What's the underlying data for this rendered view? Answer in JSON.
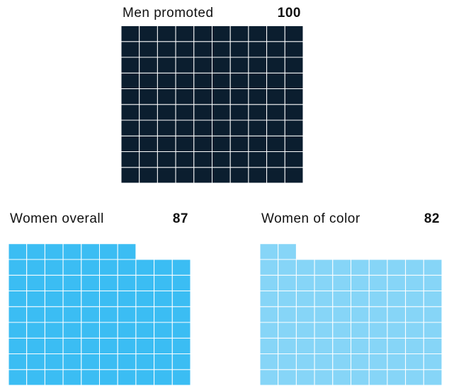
{
  "chart_data": [
    {
      "type": "waffle",
      "title": "Men promoted",
      "value": 100,
      "color": "#0b1e2f"
    },
    {
      "type": "waffle",
      "title": "Women overall",
      "value": 87,
      "color": "#3bbdf3"
    },
    {
      "type": "waffle",
      "title": "Women of color",
      "value": 82,
      "color": "#86d5f7"
    }
  ]
}
